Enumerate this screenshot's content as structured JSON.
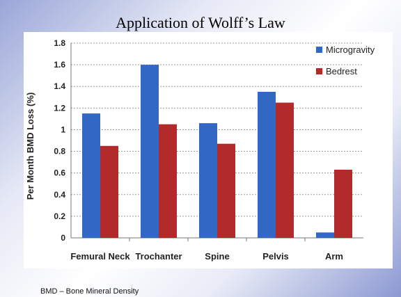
{
  "slide": {
    "title": "Application of Wolff’s Law",
    "footnote": "BMD – Bone Mineral Density"
  },
  "chart_data": {
    "type": "bar",
    "title": "",
    "xlabel": "",
    "ylabel": "Per Month BMD Loss (%)",
    "categories": [
      "Femural Neck",
      "Trochanter",
      "Spine",
      "Pelvis",
      "Arm"
    ],
    "series": [
      {
        "name": "Microgravity",
        "color": "#3367c4",
        "values": [
          1.15,
          1.6,
          1.06,
          1.35,
          0.05
        ]
      },
      {
        "name": "Bedrest",
        "color": "#b22a2a",
        "values": [
          0.85,
          1.05,
          0.87,
          1.25,
          0.63
        ]
      }
    ],
    "ylim": [
      0,
      1.8
    ],
    "yticks": [
      "0",
      "0.2",
      "0.4",
      "0.6",
      "0.8",
      "1",
      "1.2",
      "1.4",
      "1.6",
      "1.8"
    ],
    "grid": true,
    "legend_position": "top-right"
  }
}
